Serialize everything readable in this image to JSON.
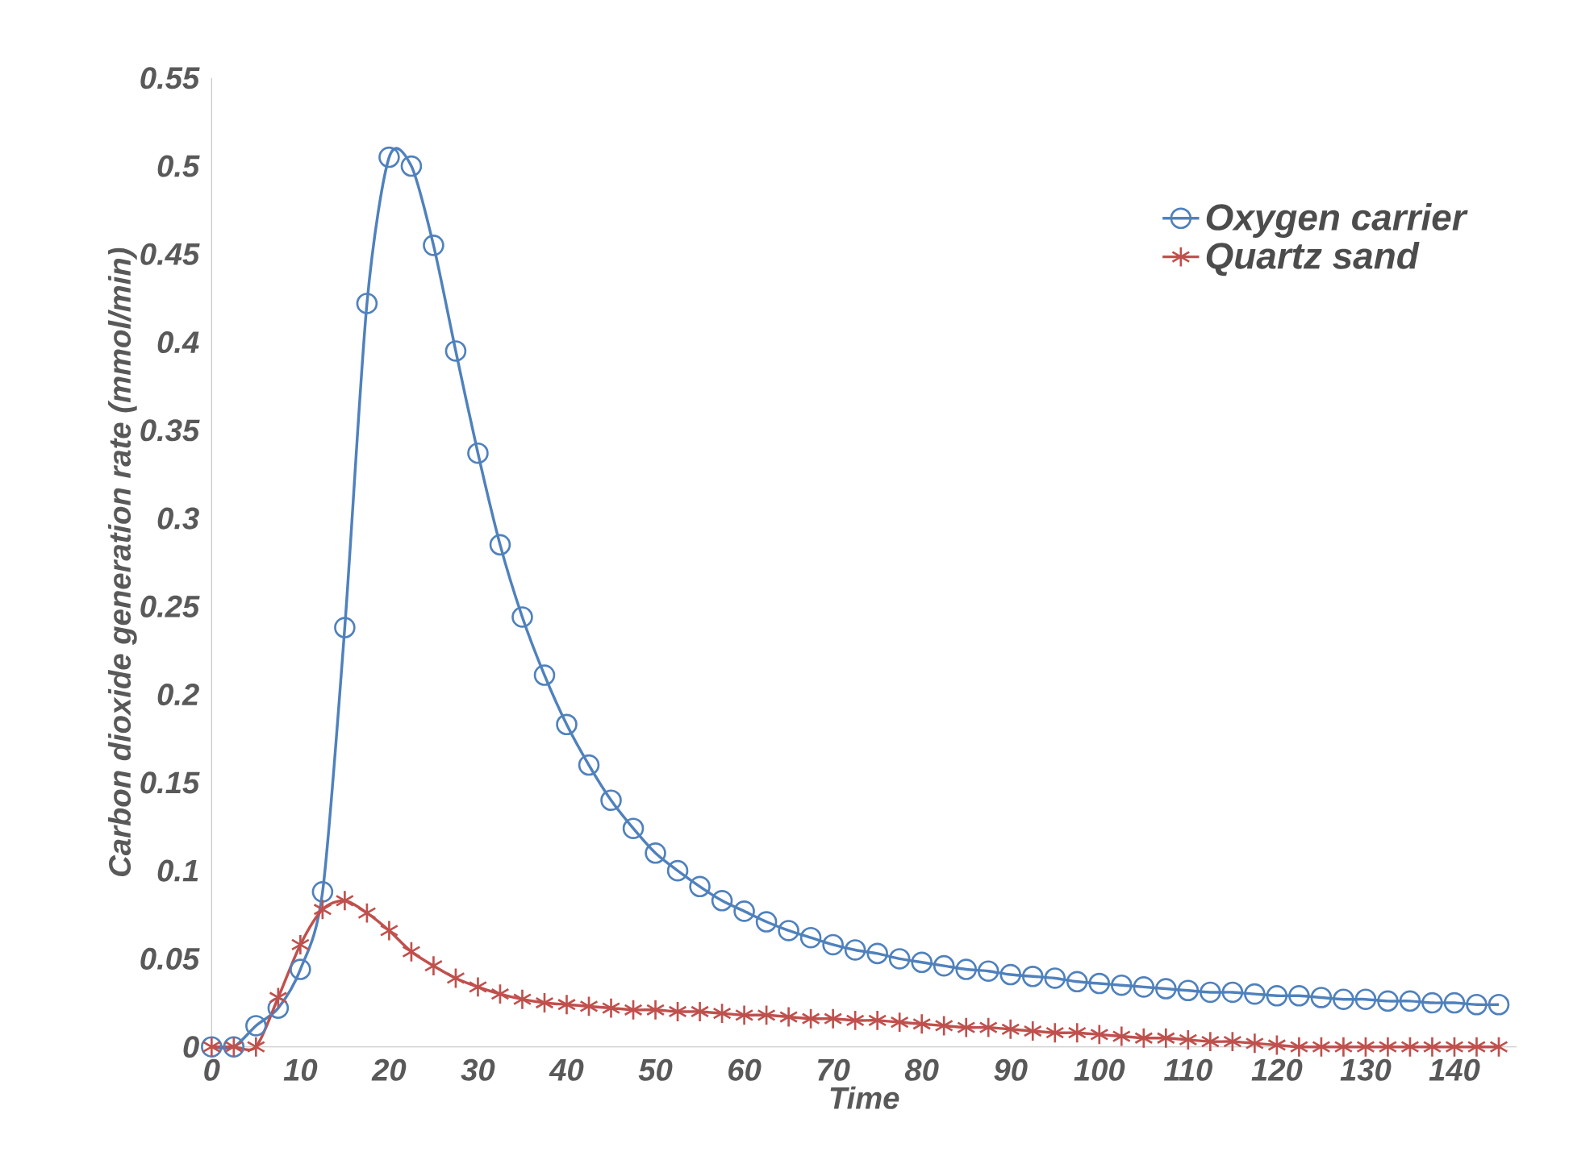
{
  "chart_data": {
    "type": "line",
    "xlabel": "Time",
    "ylabel": "Carbon dioxide generation rate (mmol/min)",
    "x": [
      0,
      2.5,
      5,
      7.5,
      10,
      12.5,
      15,
      17.5,
      20,
      22.5,
      25,
      27.5,
      30,
      32.5,
      35,
      37.5,
      40,
      42.5,
      45,
      47.5,
      50,
      52.5,
      55,
      57.5,
      60,
      62.5,
      65,
      67.5,
      70,
      72.5,
      75,
      77.5,
      80,
      82.5,
      85,
      87.5,
      90,
      92.5,
      95,
      97.5,
      100,
      102.5,
      105,
      107.5,
      110,
      112.5,
      115,
      117.5,
      120,
      122.5,
      125,
      127.5,
      130,
      132.5,
      135,
      137.5,
      140,
      142.5,
      145
    ],
    "series": [
      {
        "name": "Oxygen carrier",
        "color": "#4f81bd",
        "marker": "circle",
        "values": [
          0,
          0,
          0.012,
          0.022,
          0.044,
          0.088,
          0.238,
          0.422,
          0.505,
          0.5,
          0.455,
          0.395,
          0.337,
          0.285,
          0.244,
          0.211,
          0.183,
          0.16,
          0.14,
          0.124,
          0.11,
          0.1,
          0.091,
          0.083,
          0.077,
          0.071,
          0.066,
          0.062,
          0.058,
          0.055,
          0.053,
          0.05,
          0.048,
          0.046,
          0.044,
          0.043,
          0.041,
          0.04,
          0.039,
          0.037,
          0.036,
          0.035,
          0.034,
          0.033,
          0.032,
          0.031,
          0.031,
          0.03,
          0.029,
          0.029,
          0.028,
          0.027,
          0.027,
          0.026,
          0.026,
          0.025,
          0.025,
          0.024,
          0.024
        ]
      },
      {
        "name": "Quartz sand",
        "color": "#c0504d",
        "marker": "cross",
        "values": [
          0,
          0,
          0,
          0.028,
          0.058,
          0.078,
          0.083,
          0.076,
          0.066,
          0.054,
          0.046,
          0.039,
          0.034,
          0.03,
          0.027,
          0.025,
          0.024,
          0.023,
          0.022,
          0.021,
          0.021,
          0.02,
          0.02,
          0.019,
          0.018,
          0.018,
          0.017,
          0.016,
          0.016,
          0.015,
          0.015,
          0.014,
          0.013,
          0.012,
          0.011,
          0.011,
          0.01,
          0.009,
          0.008,
          0.008,
          0.007,
          0.006,
          0.005,
          0.005,
          0.004,
          0.003,
          0.003,
          0.002,
          0.001,
          0,
          0,
          0,
          0,
          0,
          0,
          0,
          0,
          0,
          0
        ]
      }
    ],
    "xlim": [
      0,
      147
    ],
    "xticks": [
      0,
      10,
      20,
      30,
      40,
      50,
      60,
      70,
      80,
      90,
      100,
      110,
      120,
      130,
      140
    ],
    "ylim": [
      0,
      0.55
    ],
    "yticks": [
      0,
      0.05,
      0.1,
      0.15,
      0.2,
      0.25,
      0.3,
      0.35,
      0.4,
      0.45,
      0.5,
      0.55
    ],
    "grid": false,
    "legend": "top right",
    "line_style": "solid"
  }
}
